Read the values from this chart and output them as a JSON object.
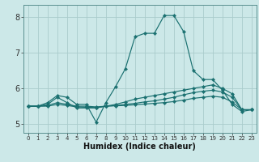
{
  "title": "",
  "xlabel": "Humidex (Indice chaleur)",
  "xlim": [
    -0.5,
    23.5
  ],
  "ylim": [
    4.75,
    8.35
  ],
  "yticks": [
    5,
    6,
    7,
    8
  ],
  "xticks": [
    0,
    1,
    2,
    3,
    4,
    5,
    6,
    7,
    8,
    9,
    10,
    11,
    12,
    13,
    14,
    15,
    16,
    17,
    18,
    19,
    20,
    21,
    22,
    23
  ],
  "bg_color": "#cce8e8",
  "grid_color": "#aacccc",
  "line_color": "#1a7070",
  "lines": [
    {
      "x": [
        0,
        1,
        2,
        3,
        4,
        5,
        6,
        7,
        8,
        9,
        10,
        11,
        12,
        13,
        14,
        15,
        16,
        17,
        18,
        19,
        20,
        21,
        22,
        23
      ],
      "y": [
        5.5,
        5.5,
        5.6,
        5.8,
        5.75,
        5.55,
        5.55,
        5.05,
        5.6,
        6.05,
        6.55,
        7.45,
        7.55,
        7.55,
        8.05,
        8.05,
        7.6,
        6.5,
        6.25,
        6.25,
        5.95,
        5.55,
        5.35,
        5.4
      ]
    },
    {
      "x": [
        0,
        1,
        2,
        3,
        4,
        5,
        6,
        7,
        8,
        9,
        10,
        11,
        12,
        13,
        14,
        15,
        16,
        17,
        18,
        19,
        20,
        21,
        22,
        23
      ],
      "y": [
        5.5,
        5.5,
        5.55,
        5.75,
        5.6,
        5.45,
        5.45,
        5.45,
        5.5,
        5.55,
        5.62,
        5.7,
        5.75,
        5.8,
        5.85,
        5.9,
        5.95,
        6.0,
        6.05,
        6.1,
        6.0,
        5.85,
        5.4,
        5.4
      ]
    },
    {
      "x": [
        0,
        1,
        2,
        3,
        4,
        5,
        6,
        7,
        8,
        9,
        10,
        11,
        12,
        13,
        14,
        15,
        16,
        17,
        18,
        19,
        20,
        21,
        22,
        23
      ],
      "y": [
        5.5,
        5.5,
        5.52,
        5.6,
        5.55,
        5.5,
        5.5,
        5.48,
        5.5,
        5.52,
        5.55,
        5.58,
        5.62,
        5.65,
        5.7,
        5.75,
        5.82,
        5.88,
        5.92,
        5.95,
        5.9,
        5.75,
        5.4,
        5.4
      ]
    },
    {
      "x": [
        0,
        1,
        2,
        3,
        4,
        5,
        6,
        7,
        8,
        9,
        10,
        11,
        12,
        13,
        14,
        15,
        16,
        17,
        18,
        19,
        20,
        21,
        22,
        23
      ],
      "y": [
        5.5,
        5.5,
        5.5,
        5.55,
        5.52,
        5.48,
        5.47,
        5.46,
        5.5,
        5.51,
        5.52,
        5.54,
        5.56,
        5.58,
        5.6,
        5.63,
        5.67,
        5.72,
        5.75,
        5.78,
        5.75,
        5.62,
        5.4,
        5.4
      ]
    }
  ]
}
